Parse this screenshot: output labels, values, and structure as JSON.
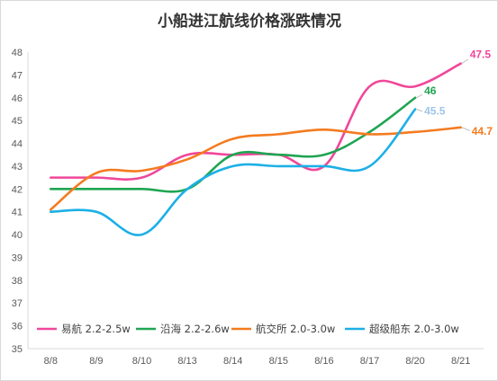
{
  "chart_data": {
    "type": "line",
    "title": "小船进江航线价格涨跌情况",
    "xlabel": "",
    "ylabel": "",
    "categories": [
      "8/8",
      "8/9",
      "8/10",
      "8/13",
      "8/14",
      "8/15",
      "8/16",
      "8/17",
      "8/20",
      "8/21"
    ],
    "ylim": [
      35,
      48
    ],
    "yticks": [
      "35",
      "36",
      "37",
      "38",
      "39",
      "40",
      "41",
      "42",
      "43",
      "44",
      "45",
      "46",
      "47",
      "48"
    ],
    "grid": false,
    "smooth": true,
    "legend_position": "bottom-inside",
    "series": [
      {
        "name": "易航 2.2-2.5w",
        "color": "#f0479a",
        "values": [
          42.5,
          42.5,
          42.5,
          43.5,
          43.5,
          43.5,
          43.0,
          46.5,
          46.5,
          47.5
        ],
        "end_label": "47.5"
      },
      {
        "name": "沿海 2.2-2.6w",
        "color": "#1fa552",
        "values": [
          42.0,
          42.0,
          42.0,
          42.0,
          43.5,
          43.5,
          43.5,
          44.5,
          46.0,
          null
        ],
        "end_label": "46"
      },
      {
        "name": "航交所 2.0-3.0w",
        "color": "#f47b20",
        "values": [
          41.1,
          42.7,
          42.8,
          43.3,
          44.2,
          44.4,
          44.6,
          44.4,
          44.5,
          44.7
        ],
        "end_label": "44.7"
      },
      {
        "name": "超级船东 2.0-3.0w",
        "color": "#1cb0e6",
        "values": [
          41.0,
          41.0,
          40.0,
          42.0,
          43.0,
          43.0,
          43.0,
          43.0,
          45.5,
          null
        ],
        "end_label": "45.5",
        "end_label_color": "#9ec5e8"
      }
    ]
  }
}
